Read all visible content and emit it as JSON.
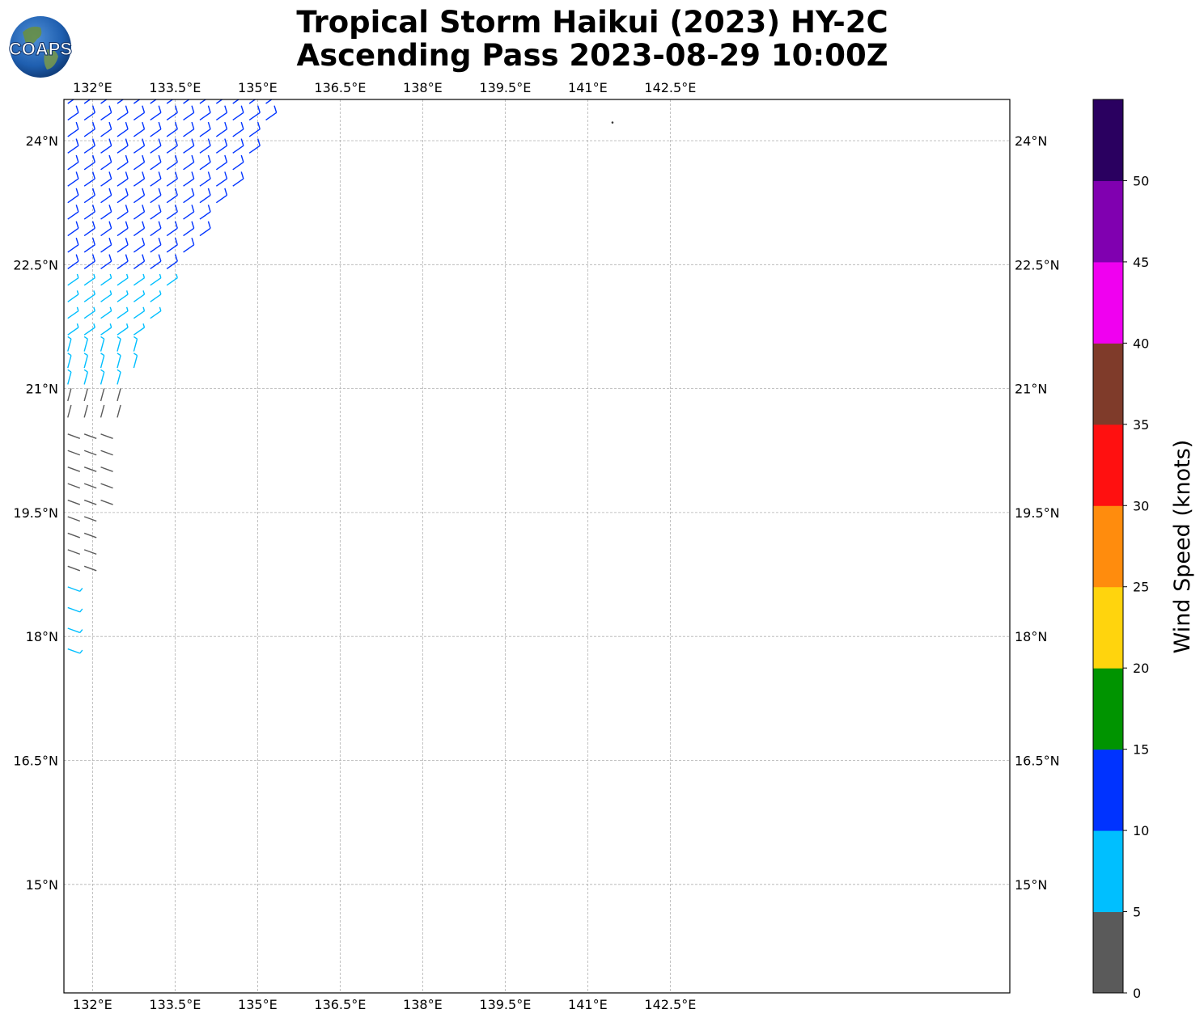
{
  "title": {
    "line1": "Tropical Storm Haikui (2023) HY-2C",
    "line2": "Ascending Pass 2023-08-29 10:00Z"
  },
  "logo": {
    "text": "COAPS",
    "icon": "globe-logo"
  },
  "map": {
    "lon_ticks": [
      "132°E",
      "133.5°E",
      "135°E",
      "136.5°E",
      "138°E",
      "139.5°E",
      "141°E",
      "142.5°E"
    ],
    "lat_ticks": [
      "24°N",
      "22.5°N",
      "21°N",
      "19.5°N",
      "18°N",
      "16.5°N",
      "15°N"
    ],
    "lon_values": [
      132,
      133.5,
      135,
      136.5,
      138,
      139.5,
      141,
      142.5
    ],
    "lat_values": [
      24,
      22.5,
      21,
      19.5,
      18,
      16.5,
      15
    ],
    "extent": {
      "lon_min": 131.5,
      "lon_max": 142.9,
      "lat_min": 13.7,
      "lat_max": 24.5
    },
    "gridlines": true,
    "island_marker": {
      "lon": 141.45,
      "lat": 24.22
    }
  },
  "colorbar": {
    "label": "Wind Speed (knots)",
    "ticks": [
      "0",
      "5",
      "10",
      "15",
      "20",
      "25",
      "30",
      "35",
      "40",
      "45",
      "50"
    ],
    "bins": [
      {
        "min": 0,
        "max": 5,
        "color": "#5a5a5a"
      },
      {
        "min": 5,
        "max": 10,
        "color": "#00bfff"
      },
      {
        "min": 10,
        "max": 15,
        "color": "#0033ff"
      },
      {
        "min": 15,
        "max": 20,
        "color": "#009400"
      },
      {
        "min": 20,
        "max": 25,
        "color": "#ffd40d"
      },
      {
        "min": 25,
        "max": 30,
        "color": "#ff8c0d"
      },
      {
        "min": 30,
        "max": 35,
        "color": "#ff1010"
      },
      {
        "min": 35,
        "max": 40,
        "color": "#7f3b2a"
      },
      {
        "min": 40,
        "max": 45,
        "color": "#f000f0"
      },
      {
        "min": 45,
        "max": 50,
        "color": "#8000b0"
      },
      {
        "min": 50,
        "max": 55,
        "color": "#2a0060"
      }
    ]
  },
  "wind_swath": {
    "units": "knots",
    "rows": [
      {
        "lat": 24.45,
        "lon_start": 131.5,
        "lon_end": 135.2,
        "speed": 12
      },
      {
        "lat": 24.25,
        "lon_start": 131.5,
        "lon_end": 135.2,
        "speed": 12
      },
      {
        "lat": 24.05,
        "lon_start": 131.5,
        "lon_end": 135.1,
        "speed": 12
      },
      {
        "lat": 23.85,
        "lon_start": 131.5,
        "lon_end": 134.95,
        "speed": 12
      },
      {
        "lat": 23.65,
        "lon_start": 131.5,
        "lon_end": 134.8,
        "speed": 12
      },
      {
        "lat": 23.45,
        "lon_start": 131.5,
        "lon_end": 134.6,
        "speed": 12
      },
      {
        "lat": 23.25,
        "lon_start": 131.5,
        "lon_end": 134.4,
        "speed": 11
      },
      {
        "lat": 23.05,
        "lon_start": 131.5,
        "lon_end": 134.2,
        "speed": 11
      },
      {
        "lat": 22.85,
        "lon_start": 131.5,
        "lon_end": 134.0,
        "speed": 10
      },
      {
        "lat": 22.65,
        "lon_start": 131.5,
        "lon_end": 133.8,
        "speed": 10
      },
      {
        "lat": 22.45,
        "lon_start": 131.5,
        "lon_end": 133.6,
        "speed": 10
      },
      {
        "lat": 22.25,
        "lon_start": 131.5,
        "lon_end": 133.45,
        "speed": 9
      },
      {
        "lat": 22.05,
        "lon_start": 131.5,
        "lon_end": 133.3,
        "speed": 9
      },
      {
        "lat": 21.85,
        "lon_start": 131.5,
        "lon_end": 133.15,
        "speed": 8
      },
      {
        "lat": 21.65,
        "lon_start": 131.5,
        "lon_end": 133.0,
        "speed": 8
      },
      {
        "lat": 21.45,
        "lon_start": 131.5,
        "lon_end": 132.9,
        "speed": 7
      },
      {
        "lat": 21.25,
        "lon_start": 131.5,
        "lon_end": 132.8,
        "speed": 6
      },
      {
        "lat": 21.05,
        "lon_start": 131.5,
        "lon_end": 132.7,
        "speed": 5
      },
      {
        "lat": 20.85,
        "lon_start": 131.5,
        "lon_end": 132.6,
        "speed": 4
      },
      {
        "lat": 20.65,
        "lon_start": 131.5,
        "lon_end": 132.5,
        "speed": 4
      },
      {
        "lat": 20.45,
        "lon_start": 131.5,
        "lon_end": 132.45,
        "speed": 3
      },
      {
        "lat": 20.25,
        "lon_start": 131.5,
        "lon_end": 132.4,
        "speed": 3
      },
      {
        "lat": 20.05,
        "lon_start": 131.5,
        "lon_end": 132.35,
        "speed": 3
      },
      {
        "lat": 19.85,
        "lon_start": 131.5,
        "lon_end": 132.3,
        "speed": 3
      },
      {
        "lat": 19.65,
        "lon_start": 131.5,
        "lon_end": 132.2,
        "speed": 3
      },
      {
        "lat": 19.45,
        "lon_start": 131.5,
        "lon_end": 132.1,
        "speed": 2
      },
      {
        "lat": 19.25,
        "lon_start": 131.5,
        "lon_end": 132.0,
        "speed": 2
      },
      {
        "lat": 19.05,
        "lon_start": 131.5,
        "lon_end": 131.95,
        "speed": 2
      },
      {
        "lat": 18.85,
        "lon_start": 131.5,
        "lon_end": 131.9,
        "speed": 3
      },
      {
        "lat": 18.6,
        "lon_start": 131.5,
        "lon_end": 131.85,
        "speed": 6
      },
      {
        "lat": 18.35,
        "lon_start": 131.5,
        "lon_end": 131.75,
        "speed": 6
      },
      {
        "lat": 18.1,
        "lon_start": 131.5,
        "lon_end": 131.65,
        "speed": 6
      },
      {
        "lat": 17.85,
        "lon_start": 131.5,
        "lon_end": 131.55,
        "speed": 6
      }
    ]
  }
}
